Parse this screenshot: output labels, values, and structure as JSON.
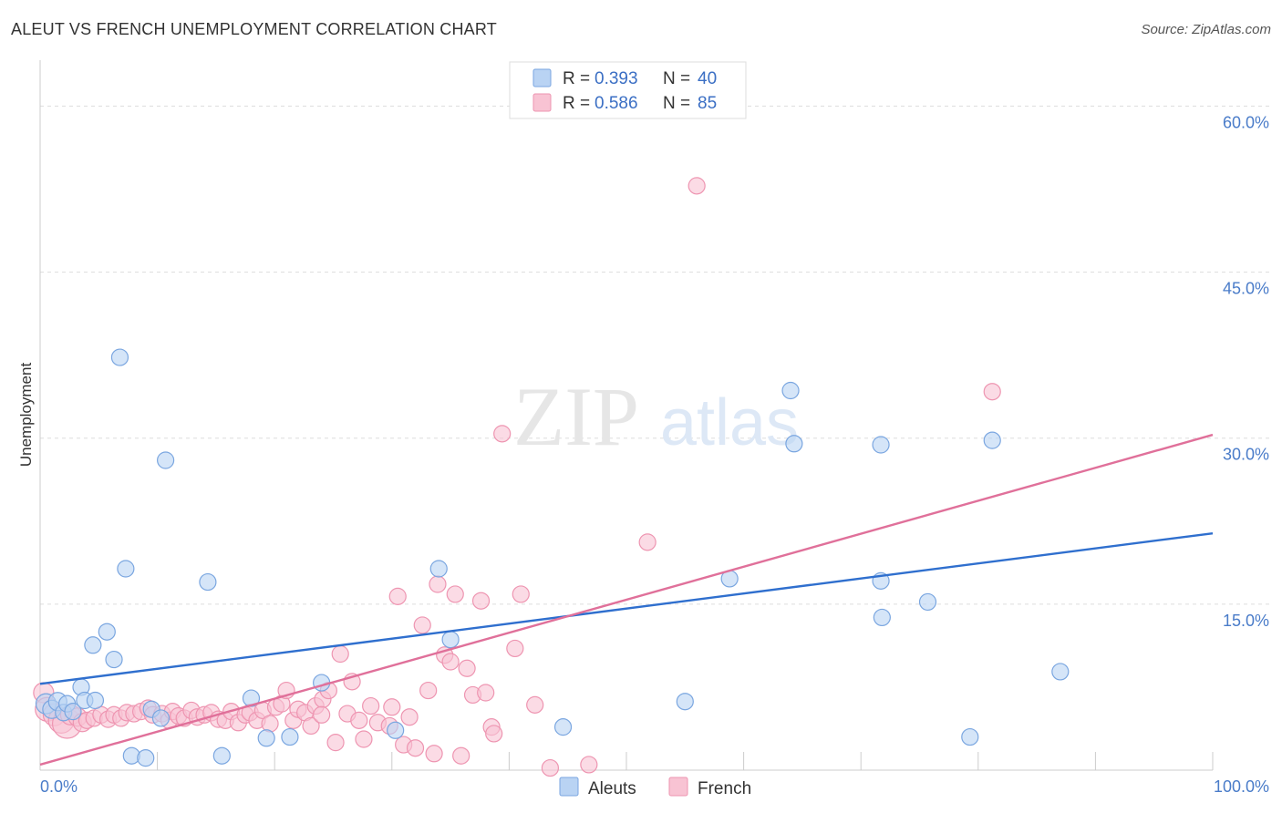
{
  "header": {
    "title": "ALEUT VS FRENCH UNEMPLOYMENT CORRELATION CHART",
    "source": "Source: ZipAtlas.com"
  },
  "watermark": {
    "zip": "ZIP",
    "atlas": "atlas"
  },
  "legend_top": {
    "rows": [
      {
        "r_label": "R =",
        "r_value": "0.393",
        "n_label": "N =",
        "n_value": "40",
        "color": "#a9c9f0"
      },
      {
        "r_label": "R =",
        "r_value": "0.586",
        "n_label": "N =",
        "n_value": "85",
        "color": "#f7b8cb"
      }
    ]
  },
  "legend_bottom": {
    "items": [
      {
        "label": "Aleuts",
        "color": "#a9c9f0"
      },
      {
        "label": "French",
        "color": "#f7b8cb"
      }
    ]
  },
  "colors": {
    "aleuts_fill": "#b9d3f3",
    "aleuts_stroke": "#7aa6e0",
    "aleuts_line": "#2f6fce",
    "french_fill": "#f8c3d3",
    "french_stroke": "#ee95b1",
    "french_line": "#e0709a",
    "grid": "#dddddd",
    "tick_label": "#4a7cc9"
  },
  "chart_data": {
    "type": "scatter",
    "title": "ALEUT VS FRENCH UNEMPLOYMENT CORRELATION CHART",
    "xlabel": "",
    "ylabel": "Unemployment",
    "xlim": [
      0,
      100
    ],
    "ylim": [
      0,
      63
    ],
    "x_tick_labels": [
      "0.0%",
      "100.0%"
    ],
    "y_ticks": [
      15,
      30,
      45,
      60
    ],
    "y_tick_labels": [
      "15.0%",
      "30.0%",
      "45.0%",
      "60.0%"
    ],
    "grid": true,
    "legend_position": "top-center",
    "series": [
      {
        "name": "Aleuts",
        "r": 0.393,
        "n": 40,
        "trend": {
          "x": [
            0,
            100
          ],
          "y": [
            7.8,
            21.4
          ]
        },
        "points": [
          {
            "x": 0.5,
            "y": 6.0,
            "s": 11
          },
          {
            "x": 1.0,
            "y": 5.5,
            "s": 10
          },
          {
            "x": 1.5,
            "y": 6.2,
            "s": 10
          },
          {
            "x": 2.0,
            "y": 5.2,
            "s": 9
          },
          {
            "x": 2.3,
            "y": 6.0,
            "s": 9
          },
          {
            "x": 2.8,
            "y": 5.3,
            "s": 9
          },
          {
            "x": 3.5,
            "y": 7.5,
            "s": 9
          },
          {
            "x": 3.8,
            "y": 6.3,
            "s": 9
          },
          {
            "x": 4.7,
            "y": 6.3,
            "s": 9
          },
          {
            "x": 4.5,
            "y": 11.3,
            "s": 9
          },
          {
            "x": 5.7,
            "y": 12.5,
            "s": 9
          },
          {
            "x": 6.3,
            "y": 10.0,
            "s": 9
          },
          {
            "x": 6.8,
            "y": 37.3,
            "s": 9
          },
          {
            "x": 7.3,
            "y": 18.2,
            "s": 9
          },
          {
            "x": 7.8,
            "y": 1.3,
            "s": 9
          },
          {
            "x": 9.0,
            "y": 1.1,
            "s": 9
          },
          {
            "x": 9.5,
            "y": 5.5,
            "s": 9
          },
          {
            "x": 10.3,
            "y": 4.7,
            "s": 9
          },
          {
            "x": 10.7,
            "y": 28.0,
            "s": 9
          },
          {
            "x": 14.3,
            "y": 17.0,
            "s": 9
          },
          {
            "x": 15.5,
            "y": 1.3,
            "s": 9
          },
          {
            "x": 18.0,
            "y": 6.5,
            "s": 9
          },
          {
            "x": 19.3,
            "y": 2.9,
            "s": 9
          },
          {
            "x": 21.3,
            "y": 3.0,
            "s": 9
          },
          {
            "x": 24.0,
            "y": 7.9,
            "s": 9
          },
          {
            "x": 30.3,
            "y": 3.6,
            "s": 9
          },
          {
            "x": 34.0,
            "y": 18.2,
            "s": 9
          },
          {
            "x": 35.0,
            "y": 11.8,
            "s": 9
          },
          {
            "x": 44.6,
            "y": 3.9,
            "s": 9
          },
          {
            "x": 55.0,
            "y": 6.2,
            "s": 9
          },
          {
            "x": 58.8,
            "y": 17.3,
            "s": 9
          },
          {
            "x": 64.0,
            "y": 34.3,
            "s": 9
          },
          {
            "x": 64.3,
            "y": 29.5,
            "s": 9
          },
          {
            "x": 71.7,
            "y": 17.1,
            "s": 9
          },
          {
            "x": 71.7,
            "y": 29.4,
            "s": 9
          },
          {
            "x": 71.8,
            "y": 13.8,
            "s": 9
          },
          {
            "x": 75.7,
            "y": 15.2,
            "s": 9
          },
          {
            "x": 79.3,
            "y": 3.0,
            "s": 9
          },
          {
            "x": 81.2,
            "y": 29.8,
            "s": 9
          },
          {
            "x": 87.0,
            "y": 8.9,
            "s": 9
          }
        ]
      },
      {
        "name": "French",
        "r": 0.586,
        "n": 85,
        "trend": {
          "x": [
            0,
            100
          ],
          "y": [
            0.5,
            30.3
          ]
        },
        "points": [
          {
            "x": 0.3,
            "y": 7.0,
            "s": 11
          },
          {
            "x": 0.6,
            "y": 5.5,
            "s": 13
          },
          {
            "x": 1.2,
            "y": 5.0,
            "s": 12
          },
          {
            "x": 1.8,
            "y": 4.5,
            "s": 14
          },
          {
            "x": 2.3,
            "y": 4.2,
            "s": 16
          },
          {
            "x": 2.6,
            "y": 5.0,
            "s": 11
          },
          {
            "x": 3.2,
            "y": 4.8,
            "s": 10
          },
          {
            "x": 3.6,
            "y": 4.3,
            "s": 10
          },
          {
            "x": 4.0,
            "y": 4.5,
            "s": 9
          },
          {
            "x": 4.6,
            "y": 4.7,
            "s": 9
          },
          {
            "x": 5.2,
            "y": 5.0,
            "s": 9
          },
          {
            "x": 5.8,
            "y": 4.6,
            "s": 9
          },
          {
            "x": 6.3,
            "y": 5.0,
            "s": 9
          },
          {
            "x": 6.9,
            "y": 4.7,
            "s": 9
          },
          {
            "x": 7.4,
            "y": 5.2,
            "s": 9
          },
          {
            "x": 8.0,
            "y": 5.1,
            "s": 9
          },
          {
            "x": 8.6,
            "y": 5.3,
            "s": 9
          },
          {
            "x": 9.2,
            "y": 5.6,
            "s": 9
          },
          {
            "x": 9.6,
            "y": 5.0,
            "s": 9
          },
          {
            "x": 10.4,
            "y": 5.1,
            "s": 9
          },
          {
            "x": 11.0,
            "y": 4.5,
            "s": 9
          },
          {
            "x": 11.3,
            "y": 5.3,
            "s": 9
          },
          {
            "x": 11.8,
            "y": 4.9,
            "s": 9
          },
          {
            "x": 12.3,
            "y": 4.7,
            "s": 9
          },
          {
            "x": 12.9,
            "y": 5.4,
            "s": 9
          },
          {
            "x": 13.4,
            "y": 4.8,
            "s": 9
          },
          {
            "x": 14.0,
            "y": 5.0,
            "s": 9
          },
          {
            "x": 14.6,
            "y": 5.2,
            "s": 9
          },
          {
            "x": 15.2,
            "y": 4.6,
            "s": 9
          },
          {
            "x": 15.8,
            "y": 4.5,
            "s": 9
          },
          {
            "x": 16.3,
            "y": 5.3,
            "s": 9
          },
          {
            "x": 16.9,
            "y": 4.3,
            "s": 9
          },
          {
            "x": 17.5,
            "y": 5.0,
            "s": 9
          },
          {
            "x": 17.9,
            "y": 5.2,
            "s": 9
          },
          {
            "x": 18.5,
            "y": 4.5,
            "s": 9
          },
          {
            "x": 19.0,
            "y": 5.4,
            "s": 9
          },
          {
            "x": 19.6,
            "y": 4.2,
            "s": 9
          },
          {
            "x": 20.1,
            "y": 5.7,
            "s": 9
          },
          {
            "x": 20.6,
            "y": 6.0,
            "s": 9
          },
          {
            "x": 21.0,
            "y": 7.2,
            "s": 9
          },
          {
            "x": 21.6,
            "y": 4.5,
            "s": 9
          },
          {
            "x": 22.0,
            "y": 5.5,
            "s": 9
          },
          {
            "x": 22.6,
            "y": 5.2,
            "s": 9
          },
          {
            "x": 23.1,
            "y": 4.0,
            "s": 9
          },
          {
            "x": 23.5,
            "y": 5.8,
            "s": 9
          },
          {
            "x": 24.1,
            "y": 6.4,
            "s": 9
          },
          {
            "x": 24.6,
            "y": 7.2,
            "s": 9
          },
          {
            "x": 25.2,
            "y": 2.5,
            "s": 9
          },
          {
            "x": 25.6,
            "y": 10.5,
            "s": 9
          },
          {
            "x": 26.2,
            "y": 5.1,
            "s": 9
          },
          {
            "x": 26.6,
            "y": 8.0,
            "s": 9
          },
          {
            "x": 27.2,
            "y": 4.5,
            "s": 9
          },
          {
            "x": 27.6,
            "y": 2.8,
            "s": 9
          },
          {
            "x": 28.2,
            "y": 5.8,
            "s": 9
          },
          {
            "x": 28.8,
            "y": 4.3,
            "s": 9
          },
          {
            "x": 29.8,
            "y": 4.0,
            "s": 9
          },
          {
            "x": 30.5,
            "y": 15.7,
            "s": 9
          },
          {
            "x": 31.0,
            "y": 2.3,
            "s": 9
          },
          {
            "x": 31.5,
            "y": 4.8,
            "s": 9
          },
          {
            "x": 32.6,
            "y": 13.1,
            "s": 9
          },
          {
            "x": 33.1,
            "y": 7.2,
            "s": 9
          },
          {
            "x": 33.6,
            "y": 1.5,
            "s": 9
          },
          {
            "x": 33.9,
            "y": 16.8,
            "s": 9
          },
          {
            "x": 34.5,
            "y": 10.4,
            "s": 9
          },
          {
            "x": 35.0,
            "y": 9.8,
            "s": 9
          },
          {
            "x": 35.4,
            "y": 15.9,
            "s": 9
          },
          {
            "x": 35.9,
            "y": 1.3,
            "s": 9
          },
          {
            "x": 36.4,
            "y": 9.2,
            "s": 9
          },
          {
            "x": 36.9,
            "y": 6.8,
            "s": 9
          },
          {
            "x": 37.6,
            "y": 15.3,
            "s": 9
          },
          {
            "x": 38.0,
            "y": 7.0,
            "s": 9
          },
          {
            "x": 38.5,
            "y": 3.9,
            "s": 9
          },
          {
            "x": 38.7,
            "y": 3.3,
            "s": 9
          },
          {
            "x": 39.4,
            "y": 30.4,
            "s": 9
          },
          {
            "x": 40.5,
            "y": 11.0,
            "s": 9
          },
          {
            "x": 41.0,
            "y": 15.9,
            "s": 9
          },
          {
            "x": 42.2,
            "y": 5.9,
            "s": 9
          },
          {
            "x": 43.5,
            "y": 0.2,
            "s": 9
          },
          {
            "x": 46.8,
            "y": 0.5,
            "s": 9
          },
          {
            "x": 51.8,
            "y": 20.6,
            "s": 9
          },
          {
            "x": 56.0,
            "y": 52.8,
            "s": 9
          },
          {
            "x": 81.2,
            "y": 34.2,
            "s": 9
          },
          {
            "x": 24.0,
            "y": 5.0,
            "s": 9
          },
          {
            "x": 30.0,
            "y": 5.7,
            "s": 9
          },
          {
            "x": 32.0,
            "y": 2.0,
            "s": 9
          }
        ]
      }
    ]
  }
}
